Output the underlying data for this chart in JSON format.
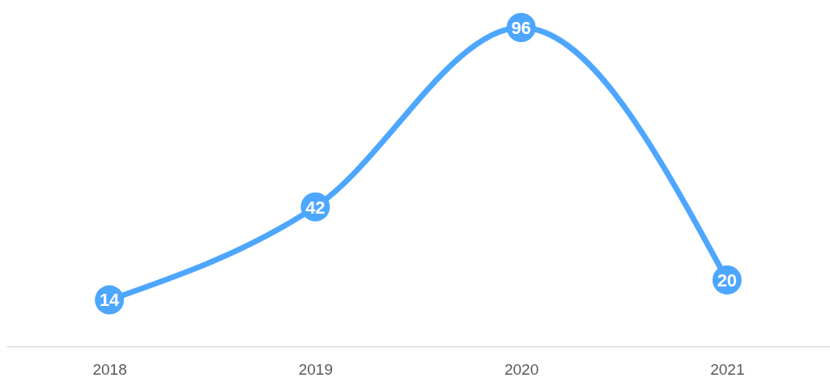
{
  "chart_data": {
    "type": "line",
    "categories": [
      "2018",
      "2019",
      "2020",
      "2021"
    ],
    "series": [
      {
        "color": "#4da6ff",
        "values": [
          14,
          42,
          96,
          20
        ]
      }
    ],
    "data_labels": true,
    "marker": "circle",
    "line_style": "solid"
  }
}
